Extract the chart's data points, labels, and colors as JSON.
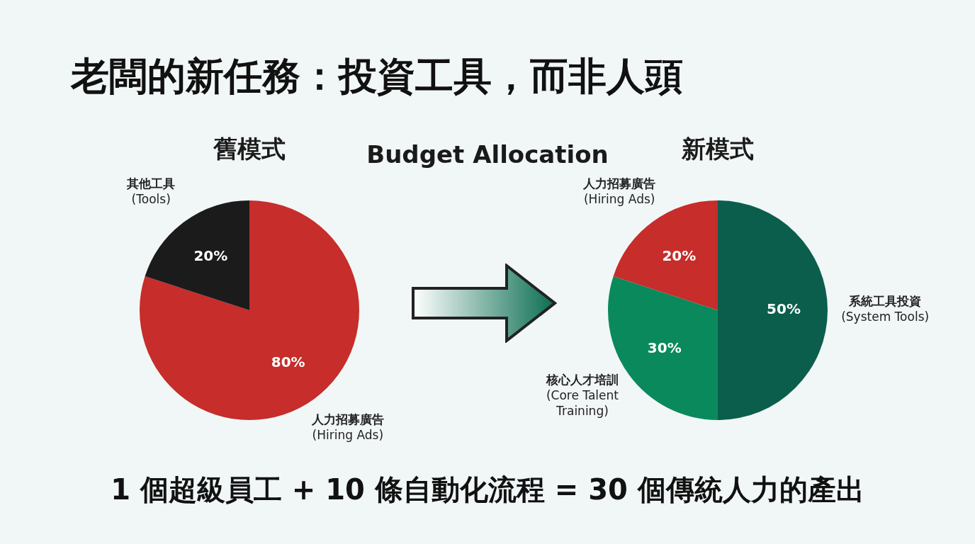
{
  "chart_data": [
    {
      "type": "other",
      "title": "老闆的新任務：投資工具，而非人頭",
      "subtitle": "Budget Allocation",
      "annotations": [
        "1 個超級員工 + 10 條自動化流程 = 30 個傳統人力的產出"
      ]
    },
    {
      "type": "pie",
      "title": "舊模式",
      "categories": [
        "人力招募廣告\n(Hiring Ads)",
        "其他工具\n(Tools)"
      ],
      "values": [
        80,
        20
      ],
      "colors": [
        "#c62d2b",
        "#1b1b1b"
      ],
      "value_labels": [
        "80%",
        "20%"
      ]
    },
    {
      "type": "pie",
      "title": "新模式",
      "categories": [
        "系統工具投資\n(System Tools)",
        "核心人才培訓\n(Core Talent\nTraining)",
        "人力招募廣告\n(Hiring Ads)"
      ],
      "values": [
        50,
        30,
        20
      ],
      "colors": [
        "#0b5e4c",
        "#0a8a5c",
        "#c62d2b"
      ],
      "value_labels": [
        "50%",
        "30%",
        "20%"
      ]
    }
  ]
}
